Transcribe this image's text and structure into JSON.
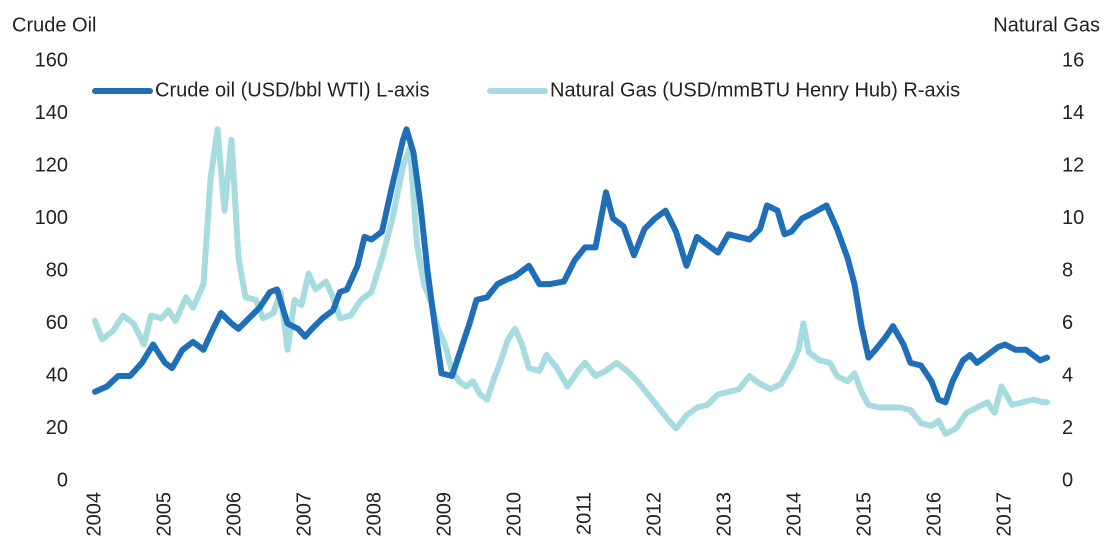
{
  "chart_data": {
    "type": "line",
    "y_title": "Crude Oil",
    "y2_title": "Natural Gas",
    "xlim": [
      2004,
      2017.75
    ],
    "xticks": [
      2004,
      2005,
      2006,
      2007,
      2008,
      2009,
      2010,
      2011,
      2012,
      2013,
      2014,
      2015,
      2016,
      2017
    ],
    "ylim": [
      0,
      160
    ],
    "yticks": [
      0,
      20,
      40,
      60,
      80,
      100,
      120,
      140,
      160
    ],
    "y2lim": [
      0,
      16
    ],
    "y2ticks": [
      0,
      2,
      4,
      6,
      8,
      10,
      12,
      14,
      16
    ],
    "grid": false,
    "legend": "top",
    "series": [
      {
        "name": "Crude oil (USD/bbl WTI) L-axis",
        "color": "#1f6fb8",
        "axis": "y",
        "x": [
          2004.0,
          2004.17,
          2004.33,
          2004.5,
          2004.67,
          2004.83,
          2005.0,
          2005.1,
          2005.25,
          2005.4,
          2005.55,
          2005.67,
          2005.8,
          2005.95,
          2006.05,
          2006.2,
          2006.35,
          2006.5,
          2006.6,
          2006.75,
          2006.9,
          2007.0,
          2007.1,
          2007.25,
          2007.4,
          2007.5,
          2007.6,
          2007.75,
          2007.85,
          2007.95,
          2008.1,
          2008.25,
          2008.4,
          2008.45,
          2008.55,
          2008.65,
          2008.75,
          2008.85,
          2008.95,
          2009.1,
          2009.2,
          2009.35,
          2009.45,
          2009.6,
          2009.75,
          2009.9,
          2010.0,
          2010.2,
          2010.35,
          2010.5,
          2010.7,
          2010.85,
          2011.0,
          2011.15,
          2011.3,
          2011.4,
          2011.55,
          2011.7,
          2011.85,
          2012.0,
          2012.15,
          2012.3,
          2012.45,
          2012.6,
          2012.75,
          2012.9,
          2013.05,
          2013.2,
          2013.35,
          2013.5,
          2013.6,
          2013.75,
          2013.85,
          2013.95,
          2014.1,
          2014.25,
          2014.45,
          2014.6,
          2014.75,
          2014.85,
          2014.95,
          2015.05,
          2015.15,
          2015.3,
          2015.4,
          2015.55,
          2015.65,
          2015.8,
          2015.95,
          2016.05,
          2016.15,
          2016.25,
          2016.4,
          2016.5,
          2016.6,
          2016.75,
          2016.9,
          2017.0,
          2017.15,
          2017.3,
          2017.4,
          2017.5,
          2017.6
        ],
        "values": [
          34,
          36,
          40,
          40,
          45,
          52,
          45,
          43,
          50,
          53,
          50,
          57,
          64,
          60,
          58,
          62,
          66,
          72,
          73,
          60,
          58,
          55,
          58,
          62,
          65,
          72,
          73,
          82,
          93,
          92,
          95,
          113,
          130,
          134,
          125,
          105,
          80,
          60,
          41,
          40,
          48,
          60,
          69,
          70,
          75,
          77,
          78,
          82,
          75,
          75,
          76,
          84,
          89,
          89,
          110,
          100,
          97,
          86,
          96,
          100,
          103,
          95,
          82,
          93,
          90,
          87,
          94,
          93,
          92,
          96,
          105,
          103,
          94,
          95,
          100,
          102,
          105,
          96,
          85,
          75,
          59,
          47,
          50,
          55,
          59,
          52,
          45,
          44,
          38,
          31,
          30,
          38,
          46,
          48,
          45,
          48,
          51,
          52,
          50,
          50,
          48,
          46,
          47
        ]
      },
      {
        "name": "Natural Gas (USD/mmBTU Henry Hub) R-axis",
        "color": "#a6dbe0",
        "axis": "y2",
        "x": [
          2004.0,
          2004.1,
          2004.25,
          2004.4,
          2004.55,
          2004.7,
          2004.8,
          2004.95,
          2005.05,
          2005.15,
          2005.3,
          2005.4,
          2005.55,
          2005.65,
          2005.75,
          2005.85,
          2005.95,
          2006.05,
          2006.15,
          2006.3,
          2006.4,
          2006.55,
          2006.65,
          2006.75,
          2006.85,
          2006.95,
          2007.05,
          2007.15,
          2007.3,
          2007.4,
          2007.5,
          2007.65,
          2007.8,
          2007.95,
          2008.1,
          2008.25,
          2008.4,
          2008.5,
          2008.6,
          2008.7,
          2008.8,
          2008.9,
          2009.0,
          2009.1,
          2009.2,
          2009.3,
          2009.4,
          2009.5,
          2009.6,
          2009.7,
          2009.8,
          2009.9,
          2010.0,
          2010.1,
          2010.2,
          2010.35,
          2010.45,
          2010.6,
          2010.75,
          2010.9,
          2011.0,
          2011.15,
          2011.3,
          2011.45,
          2011.6,
          2011.75,
          2011.9,
          2012.05,
          2012.2,
          2012.3,
          2012.45,
          2012.6,
          2012.75,
          2012.9,
          2013.05,
          2013.2,
          2013.35,
          2013.5,
          2013.65,
          2013.8,
          2013.95,
          2014.05,
          2014.12,
          2014.2,
          2014.35,
          2014.5,
          2014.6,
          2014.75,
          2014.85,
          2014.95,
          2015.05,
          2015.2,
          2015.35,
          2015.5,
          2015.65,
          2015.8,
          2015.95,
          2016.05,
          2016.15,
          2016.3,
          2016.45,
          2016.6,
          2016.75,
          2016.85,
          2016.95,
          2017.1,
          2017.25,
          2017.4,
          2017.55,
          2017.6
        ],
        "values": [
          6.1,
          5.4,
          5.7,
          6.3,
          6.0,
          5.2,
          6.3,
          6.2,
          6.5,
          6.1,
          7.0,
          6.6,
          7.5,
          11.5,
          13.4,
          10.3,
          13.0,
          8.5,
          7.0,
          6.9,
          6.2,
          6.4,
          7.2,
          5.0,
          6.9,
          6.7,
          7.9,
          7.3,
          7.6,
          7.0,
          6.2,
          6.3,
          6.9,
          7.2,
          8.5,
          10.0,
          12.0,
          12.7,
          9.0,
          7.5,
          6.8,
          5.8,
          5.2,
          4.2,
          3.8,
          3.6,
          3.8,
          3.3,
          3.1,
          3.9,
          4.6,
          5.4,
          5.8,
          5.2,
          4.3,
          4.2,
          4.8,
          4.3,
          3.6,
          4.2,
          4.5,
          4.0,
          4.2,
          4.5,
          4.2,
          3.8,
          3.3,
          2.8,
          2.3,
          2.0,
          2.5,
          2.8,
          2.9,
          3.3,
          3.4,
          3.5,
          4.0,
          3.7,
          3.5,
          3.7,
          4.4,
          5.0,
          6.0,
          4.9,
          4.6,
          4.5,
          4.0,
          3.8,
          4.1,
          3.4,
          2.9,
          2.8,
          2.8,
          2.8,
          2.7,
          2.2,
          2.1,
          2.3,
          1.8,
          2.0,
          2.6,
          2.8,
          3.0,
          2.6,
          3.6,
          2.9,
          3.0,
          3.1,
          3.0,
          3.0
        ]
      }
    ]
  }
}
